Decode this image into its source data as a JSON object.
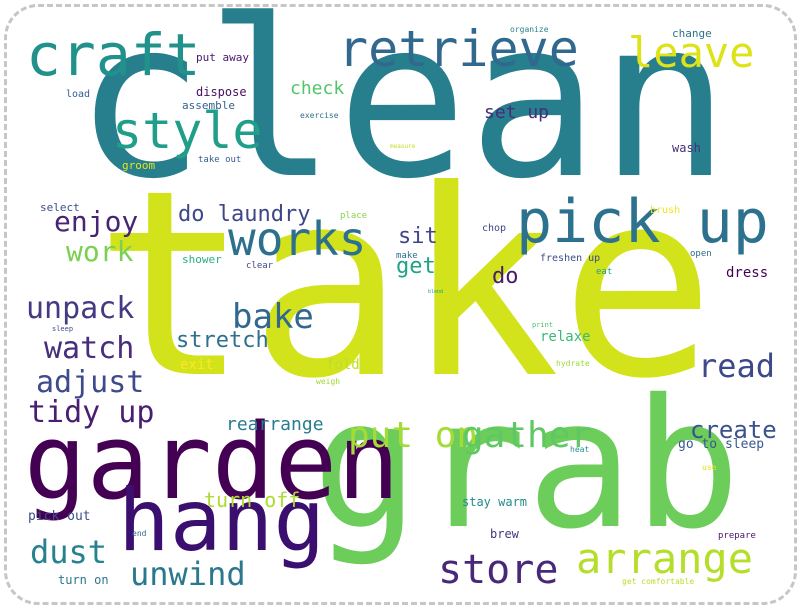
{
  "words": [
    {
      "text": "clean",
      "color": "#277f8e"
    },
    {
      "text": "take",
      "color": "#d2e21b"
    },
    {
      "text": "grab",
      "color": "#6ccd5a"
    },
    {
      "text": "garden",
      "color": "#440154"
    },
    {
      "text": "hang",
      "color": "#3b0f70"
    },
    {
      "text": "pick up",
      "color": "#2c728e"
    },
    {
      "text": "retrieve",
      "color": "#31688e"
    },
    {
      "text": "craft",
      "color": "#21918c"
    },
    {
      "text": "style",
      "color": "#1f9e89"
    },
    {
      "text": "works",
      "color": "#2d708e"
    },
    {
      "text": "leave",
      "color": "#dde318"
    },
    {
      "text": "put on",
      "color": "#a5db36"
    },
    {
      "text": "gather",
      "color": "#5ec962"
    },
    {
      "text": "arrange",
      "color": "#b5de2b"
    },
    {
      "text": "store",
      "color": "#482878"
    },
    {
      "text": "unwind",
      "color": "#2a788e"
    },
    {
      "text": "dust",
      "color": "#26828e"
    },
    {
      "text": "bake",
      "color": "#31688e"
    },
    {
      "text": "read",
      "color": "#3e4989"
    },
    {
      "text": "tidy up",
      "color": "#481f70"
    },
    {
      "text": "adjust",
      "color": "#3e4a89"
    },
    {
      "text": "watch",
      "color": "#472d7b"
    },
    {
      "text": "unpack",
      "color": "#443a83"
    },
    {
      "text": "enjoy",
      "color": "#482475"
    },
    {
      "text": "work",
      "color": "#7ad151"
    },
    {
      "text": "do laundry",
      "color": "#3f4788"
    },
    {
      "text": "get",
      "color": "#20a386"
    },
    {
      "text": "sit",
      "color": "#404688"
    },
    {
      "text": "do",
      "color": "#481b6d"
    },
    {
      "text": "stretch",
      "color": "#2d718e"
    },
    {
      "text": "create",
      "color": "#3b528b"
    },
    {
      "text": "turn off",
      "color": "#addc30"
    },
    {
      "text": "rearrange",
      "color": "#287c8e"
    },
    {
      "text": "check",
      "color": "#52c569"
    },
    {
      "text": "set up",
      "color": "#472c7a"
    },
    {
      "text": "relaxe",
      "color": "#3aba76"
    },
    {
      "text": "fold",
      "color": "#bddf26"
    },
    {
      "text": "exit",
      "color": "#fde725"
    },
    {
      "text": "dress",
      "color": "#440154"
    },
    {
      "text": "go to sleep",
      "color": "#38588c"
    },
    {
      "text": "stay warm",
      "color": "#228c8d"
    },
    {
      "text": "pick out",
      "color": "#3d4e8a"
    },
    {
      "text": "turn on",
      "color": "#2a768e"
    },
    {
      "text": "brew",
      "color": "#453781"
    },
    {
      "text": "wash",
      "color": "#46307e"
    },
    {
      "text": "put away",
      "color": "#481769"
    },
    {
      "text": "dispose",
      "color": "#471063"
    },
    {
      "text": "assemble",
      "color": "#34618d"
    },
    {
      "text": "load",
      "color": "#355f8d"
    },
    {
      "text": "groom",
      "color": "#e5e419"
    },
    {
      "text": "take out",
      "color": "#355e8d"
    },
    {
      "text": "select",
      "color": "#3c4f8a"
    },
    {
      "text": "shower",
      "color": "#29af7f"
    },
    {
      "text": "make",
      "color": "#2c738e"
    },
    {
      "text": "clear",
      "color": "#404588"
    },
    {
      "text": "place",
      "color": "#86d549"
    },
    {
      "text": "chop",
      "color": "#414487"
    },
    {
      "text": "freshen up",
      "color": "#3e4c8a"
    },
    {
      "text": "eat",
      "color": "#1fa088"
    },
    {
      "text": "open",
      "color": "#2f6c8e"
    },
    {
      "text": "brush",
      "color": "#f1e51d"
    },
    {
      "text": "change",
      "color": "#2c738e"
    },
    {
      "text": "organize",
      "color": "#26818e"
    },
    {
      "text": "exercise",
      "color": "#2e6f8e"
    },
    {
      "text": "measure",
      "color": "#c2df23"
    },
    {
      "text": "blend",
      "color": "#1f998a"
    },
    {
      "text": "sleep",
      "color": "#3f4889"
    },
    {
      "text": "print",
      "color": "#4ac16d"
    },
    {
      "text": "hydrate",
      "color": "#9bd93c"
    },
    {
      "text": "weigh",
      "color": "#a0da39"
    },
    {
      "text": "heat",
      "color": "#20928c"
    },
    {
      "text": "use",
      "color": "#dfe318"
    },
    {
      "text": "end",
      "color": "#31678e"
    },
    {
      "text": "prepare",
      "color": "#481467"
    },
    {
      "text": "get comfortable",
      "color": "#b8de29"
    }
  ]
}
